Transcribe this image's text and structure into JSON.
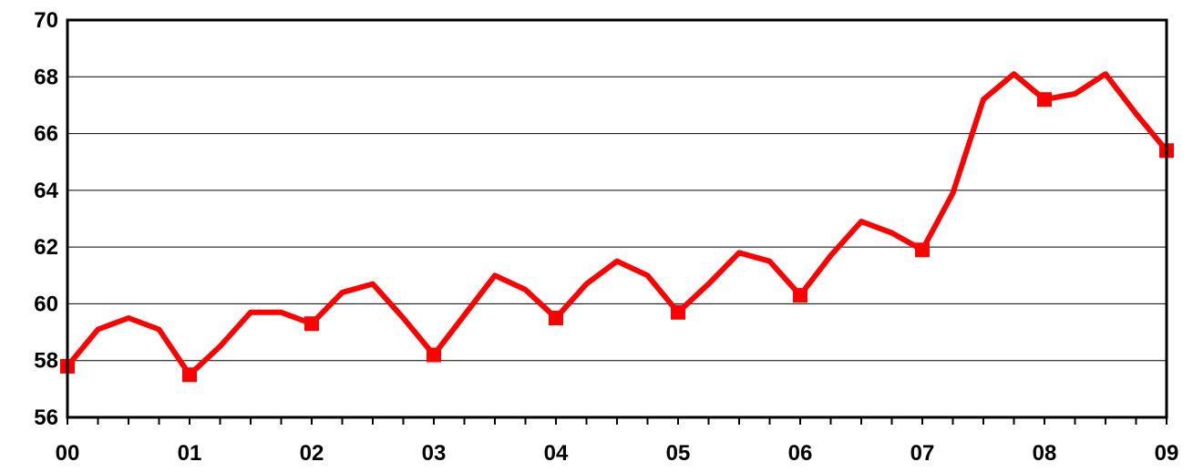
{
  "chart_data": {
    "type": "line",
    "title": "",
    "xlabel": "",
    "ylabel": "",
    "ylim": [
      56,
      70
    ],
    "yticks": [
      56,
      58,
      60,
      62,
      64,
      66,
      68,
      70
    ],
    "xlim": [
      0,
      36
    ],
    "xticks": [
      {
        "x": 0,
        "label": "00"
      },
      {
        "x": 4,
        "label": "01"
      },
      {
        "x": 8,
        "label": "02"
      },
      {
        "x": 12,
        "label": "03"
      },
      {
        "x": 16,
        "label": "04"
      },
      {
        "x": 20,
        "label": "05"
      },
      {
        "x": 24,
        "label": "06"
      },
      {
        "x": 28,
        "label": "07"
      },
      {
        "x": 32,
        "label": "08"
      },
      {
        "x": 36,
        "label": "09"
      }
    ],
    "minor_ticks_per_major": 4,
    "grid": true,
    "line_color": "#ff0000",
    "marker": "square",
    "marker_every": 4,
    "series": [
      {
        "x": [
          0,
          1,
          2,
          3,
          4,
          5,
          6,
          7,
          8,
          9,
          10,
          11,
          12,
          13,
          14,
          15,
          16,
          17,
          18,
          19,
          20,
          21,
          22,
          23,
          24,
          25,
          26,
          27,
          28,
          29,
          30,
          31,
          32,
          33,
          34,
          35,
          36
        ],
        "values": [
          57.8,
          59.1,
          59.5,
          59.1,
          57.5,
          58.5,
          59.7,
          59.7,
          59.3,
          60.4,
          60.7,
          59.5,
          58.2,
          59.6,
          61.0,
          60.5,
          59.5,
          60.7,
          61.5,
          61.0,
          59.7,
          60.7,
          61.8,
          61.5,
          60.3,
          61.7,
          62.9,
          62.5,
          61.9,
          63.9,
          67.2,
          68.1,
          67.2,
          67.4,
          68.1,
          66.7,
          65.4
        ]
      }
    ]
  }
}
